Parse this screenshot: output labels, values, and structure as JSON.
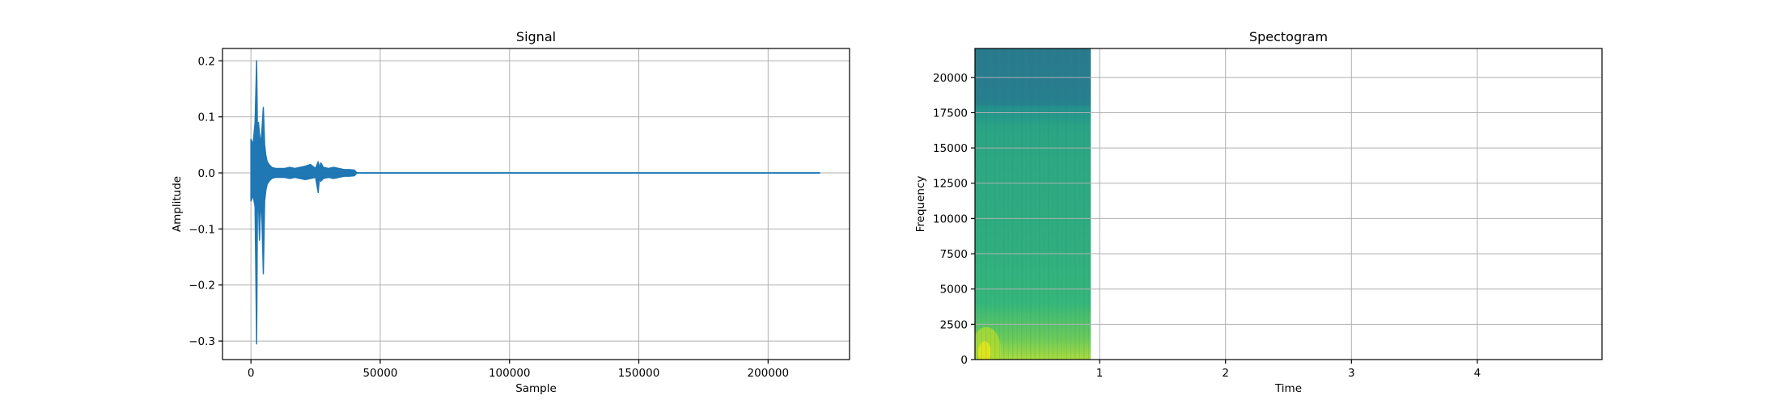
{
  "chart_data": [
    {
      "type": "line",
      "title": "Signal",
      "xlabel": "Sample",
      "ylabel": "Amplitude",
      "xlim": [
        -11000,
        231500
      ],
      "ylim": [
        -0.333,
        0.222
      ],
      "xticks": [
        0,
        50000,
        100000,
        150000,
        200000
      ],
      "xtick_labels": [
        "0",
        "50000",
        "100000",
        "150000",
        "200000"
      ],
      "yticks": [
        -0.3,
        -0.2,
        -0.1,
        0.0,
        0.1,
        0.2
      ],
      "ytick_labels": [
        "−0.3",
        "−0.2",
        "−0.1",
        "0.0",
        "0.1",
        "0.2"
      ],
      "grid": true,
      "series": [
        {
          "color": "#1f77b4",
          "x": [
            0,
            800,
            1600,
            2200,
            2500,
            2900,
            3300,
            3800,
            4300,
            4800,
            5300,
            5800,
            6300,
            7000,
            8000,
            9500,
            11000,
            13000,
            15000,
            17000,
            19000,
            21000,
            23000,
            25000,
            26000,
            26500,
            27000,
            28000,
            30000,
            32000,
            34000,
            36000,
            38000,
            40000,
            41000,
            60000,
            100000,
            150000,
            220000
          ],
          "y_max": [
            0.06,
            0.05,
            0.09,
            0.2,
            0.08,
            0.09,
            0.07,
            0.05,
            0.08,
            0.117,
            0.05,
            0.03,
            0.02,
            0.015,
            0.01,
            0.008,
            0.008,
            0.008,
            0.01,
            0.008,
            0.01,
            0.012,
            0.015,
            0.008,
            0.02,
            0.008,
            0.018,
            0.01,
            0.008,
            0.01,
            0.008,
            0.006,
            0.006,
            0.005,
            0.0,
            0.0,
            0.0,
            0.0,
            0.0
          ],
          "y_min": [
            -0.05,
            -0.04,
            -0.06,
            -0.305,
            -0.07,
            -0.05,
            -0.12,
            -0.04,
            -0.09,
            -0.18,
            -0.05,
            -0.03,
            -0.02,
            -0.015,
            -0.01,
            -0.008,
            -0.008,
            -0.008,
            -0.01,
            -0.008,
            -0.01,
            -0.012,
            -0.01,
            -0.008,
            -0.035,
            -0.008,
            -0.015,
            -0.01,
            -0.008,
            -0.01,
            -0.008,
            -0.006,
            -0.006,
            -0.005,
            0.0,
            0.0,
            0.0,
            0.0,
            0.0
          ]
        }
      ]
    },
    {
      "type": "heatmap",
      "title": "Spectogram",
      "xlabel": "Time",
      "ylabel": "Frequency",
      "xlim": [
        0.01,
        4.99
      ],
      "ylim": [
        0,
        22050
      ],
      "xticks": [
        1,
        2,
        3,
        4
      ],
      "xtick_labels": [
        "1",
        "2",
        "3",
        "4"
      ],
      "yticks": [
        0,
        2500,
        5000,
        7500,
        10000,
        12500,
        15000,
        17500,
        20000
      ],
      "ytick_labels": [
        "0",
        "2500",
        "5000",
        "7500",
        "10000",
        "12500",
        "15000",
        "17500",
        "20000"
      ],
      "grid": true,
      "signal_end_time": 0.93,
      "colormap": "viridis",
      "colormap_stops": [
        "#440154",
        "#31688e",
        "#21918c",
        "#35b779",
        "#90d743",
        "#fde725"
      ],
      "intensity_by_frequency": [
        {
          "frequency": 0,
          "level": 0.85
        },
        {
          "frequency": 1500,
          "level": 0.72
        },
        {
          "frequency": 4000,
          "level": 0.6
        },
        {
          "frequency": 8000,
          "level": 0.55
        },
        {
          "frequency": 14000,
          "level": 0.52
        },
        {
          "frequency": 16500,
          "level": 0.5
        },
        {
          "frequency": 17500,
          "level": 0.42
        },
        {
          "frequency": 18500,
          "level": 0.34
        },
        {
          "frequency": 22050,
          "level": 0.3
        }
      ]
    }
  ]
}
